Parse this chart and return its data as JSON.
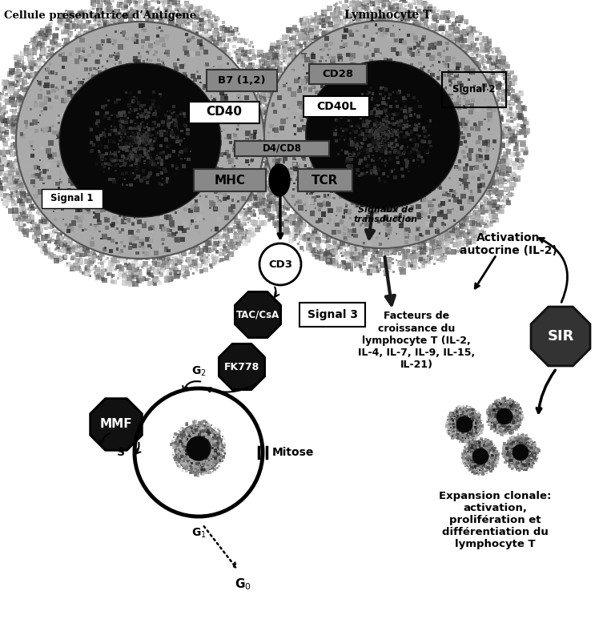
{
  "bg_color": "#ffffff",
  "cell_left_label": "Cellule présentatrice d’Antigène",
  "cell_right_label": "Lymphocyte T",
  "label_B7": "B7 (1,2)",
  "label_CD28": "CD28",
  "label_CD40": "CD40",
  "label_CD40L": "CD40L",
  "label_Signal1": "Signal 1",
  "label_Signal2": "Signal 2",
  "label_D4CD8": "D4/CD8",
  "label_MHC": "MHC",
  "label_TCR": "TCR",
  "label_CD3": "CD3",
  "label_TAC": "TAC/CsA",
  "label_Signal3": "Signal 3",
  "label_FK778": "FK778",
  "label_MMF": "MMF",
  "label_Signaux": "Signaux de\ntransduction",
  "label_Activation": "Activation\nautocrine (IL-2)",
  "label_Facteurs": "Facteurs de\ncroissance du\nlymphocyte T (IL-2,\nIL-4, IL-7, IL-9, IL-15,\nIL-21)",
  "label_SIR": "SIR",
  "label_G0": "G$_0$",
  "label_G1": "G$_1$",
  "label_G2": "G$_2$",
  "label_S": "S",
  "label_Mitose": "Mitose",
  "label_Expansion": "Expansion clonale:\nactivation,\nprolifération et\ndifférentiation du\nlymphocyte T"
}
